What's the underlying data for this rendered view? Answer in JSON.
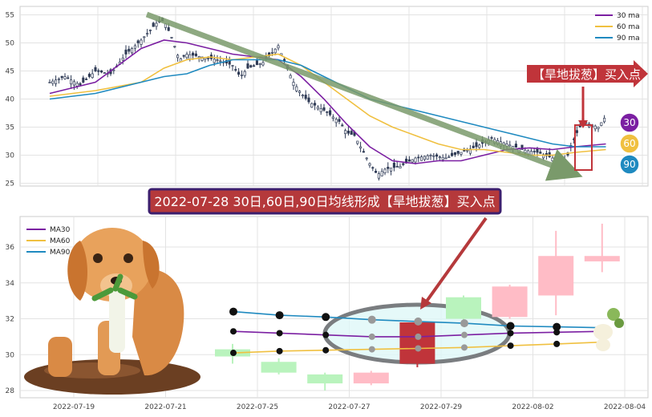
{
  "chart_data": [
    {
      "type": "line",
      "subtype": "candlestick-with-moving-averages",
      "ylim": [
        24.5,
        56.5
      ],
      "yticks": [
        25,
        30,
        35,
        40,
        45,
        50,
        55
      ],
      "grid": true,
      "legend_position": "top-right",
      "series": [
        {
          "name": "30 ma",
          "color": "#7b1fa2"
        },
        {
          "name": "60 ma",
          "color": "#f0c040"
        },
        {
          "name": "90 ma",
          "color": "#1f8ac0"
        }
      ],
      "close_path": [
        [
          0,
          43
        ],
        [
          10,
          44
        ],
        [
          20,
          42.5
        ],
        [
          30,
          45
        ],
        [
          40,
          44.5
        ],
        [
          50,
          48
        ],
        [
          60,
          50.5
        ],
        [
          65,
          52
        ],
        [
          70,
          53.5
        ],
        [
          75,
          54
        ],
        [
          80,
          51
        ],
        [
          85,
          47
        ],
        [
          90,
          48
        ],
        [
          100,
          47.5
        ],
        [
          110,
          47
        ],
        [
          120,
          46
        ],
        [
          125,
          44
        ],
        [
          130,
          45.5
        ],
        [
          140,
          46.5
        ],
        [
          145,
          48
        ],
        [
          150,
          49.5
        ],
        [
          155,
          46
        ],
        [
          160,
          43
        ],
        [
          165,
          41
        ],
        [
          170,
          39.5
        ],
        [
          180,
          38
        ],
        [
          190,
          36
        ],
        [
          195,
          34
        ],
        [
          200,
          33.5
        ],
        [
          205,
          31
        ],
        [
          210,
          28.5
        ],
        [
          215,
          26.5
        ],
        [
          220,
          27.5
        ],
        [
          230,
          28
        ],
        [
          240,
          29.5
        ],
        [
          250,
          30
        ],
        [
          260,
          29.5
        ],
        [
          270,
          30.5
        ],
        [
          280,
          31.5
        ],
        [
          290,
          33
        ],
        [
          300,
          32
        ],
        [
          310,
          31
        ],
        [
          320,
          30.5
        ],
        [
          330,
          29.5
        ],
        [
          336,
          28.5
        ],
        [
          340,
          30
        ],
        [
          345,
          33.5
        ],
        [
          350,
          36
        ],
        [
          360,
          35
        ],
        [
          365,
          37
        ]
      ],
      "ma30": [
        [
          0,
          41
        ],
        [
          15,
          42
        ],
        [
          30,
          43
        ],
        [
          45,
          46
        ],
        [
          60,
          49
        ],
        [
          75,
          50.5
        ],
        [
          90,
          50
        ],
        [
          105,
          49
        ],
        [
          120,
          48
        ],
        [
          135,
          47.5
        ],
        [
          150,
          47
        ],
        [
          165,
          44
        ],
        [
          180,
          40
        ],
        [
          195,
          35.5
        ],
        [
          210,
          31.5
        ],
        [
          225,
          29
        ],
        [
          240,
          28.5
        ],
        [
          255,
          29
        ],
        [
          270,
          29
        ],
        [
          285,
          30
        ],
        [
          300,
          31
        ],
        [
          315,
          31.3
        ],
        [
          330,
          31
        ],
        [
          345,
          31.5
        ],
        [
          365,
          32
        ]
      ],
      "ma60": [
        [
          0,
          40.5
        ],
        [
          30,
          41.5
        ],
        [
          60,
          43
        ],
        [
          75,
          45.5
        ],
        [
          90,
          47
        ],
        [
          105,
          47.5
        ],
        [
          120,
          47
        ],
        [
          135,
          47.5
        ],
        [
          150,
          48
        ],
        [
          165,
          46
        ],
        [
          180,
          43
        ],
        [
          195,
          40
        ],
        [
          210,
          37
        ],
        [
          225,
          35
        ],
        [
          240,
          33.5
        ],
        [
          255,
          32
        ],
        [
          270,
          31
        ],
        [
          285,
          31
        ],
        [
          300,
          30.5
        ],
        [
          315,
          30
        ],
        [
          330,
          30
        ],
        [
          345,
          30.5
        ],
        [
          365,
          31
        ]
      ],
      "ma90": [
        [
          0,
          40
        ],
        [
          30,
          41
        ],
        [
          60,
          43
        ],
        [
          75,
          44
        ],
        [
          90,
          44.5
        ],
        [
          105,
          46
        ],
        [
          120,
          47
        ],
        [
          135,
          47
        ],
        [
          150,
          47
        ],
        [
          165,
          46
        ],
        [
          180,
          44
        ],
        [
          195,
          42
        ],
        [
          210,
          40
        ],
        [
          225,
          39
        ],
        [
          240,
          38
        ],
        [
          255,
          37
        ],
        [
          270,
          36
        ],
        [
          285,
          35
        ],
        [
          300,
          34
        ],
        [
          315,
          33
        ],
        [
          330,
          32
        ],
        [
          345,
          31.5
        ],
        [
          365,
          31.5
        ]
      ],
      "trend_arrow_label": "",
      "signal_label": "【旱地拔葱】买入点",
      "badges": [
        "30",
        "60",
        "90"
      ]
    },
    {
      "type": "line",
      "subtype": "candlestick-zoom",
      "ylim": [
        27.6,
        37.7
      ],
      "yticks": [
        28,
        30,
        32,
        34,
        36
      ],
      "xticks": [
        "2022-07-19",
        "2022-07-21",
        "2022-07-25",
        "2022-07-27",
        "2022-07-29",
        "2022-08-02",
        "2022-08-04"
      ],
      "grid": true,
      "legend_position": "top-left",
      "series": [
        {
          "name": "MA30",
          "color": "#7b1fa2",
          "values": [
            31.3,
            31.2,
            31.1,
            31.0,
            31.0,
            31.1,
            31.2,
            31.25,
            31.3
          ]
        },
        {
          "name": "MA60",
          "color": "#f0c040",
          "values": [
            30.1,
            30.2,
            30.25,
            30.3,
            30.35,
            30.4,
            30.5,
            30.6,
            30.7
          ]
        },
        {
          "name": "MA90",
          "color": "#1f8ac0",
          "values": [
            32.4,
            32.2,
            32.1,
            31.95,
            31.85,
            31.75,
            31.6,
            31.55,
            31.5
          ]
        }
      ],
      "candles": [
        {
          "o": 29.9,
          "c": 30.3,
          "h": 30.6,
          "l": 29.5,
          "color": "#b9f3bd"
        },
        {
          "o": 29.6,
          "c": 29.0,
          "h": 29.8,
          "l": 28.9,
          "color": "#b9f3bd"
        },
        {
          "o": 28.9,
          "c": 28.4,
          "h": 29.0,
          "l": 28.0,
          "color": "#b9f3bd"
        },
        {
          "o": 28.4,
          "c": 29.0,
          "h": 29.1,
          "l": 28.3,
          "color": "#ffbcc6"
        },
        {
          "o": 29.5,
          "c": 31.8,
          "h": 31.9,
          "l": 29.3,
          "color": "#c0343a"
        },
        {
          "o": 33.2,
          "c": 32.0,
          "h": 33.3,
          "l": 31.8,
          "color": "#b9f3bd"
        },
        {
          "o": 32.1,
          "c": 33.8,
          "h": 33.9,
          "l": 32.0,
          "color": "#ffbcc6"
        },
        {
          "o": 33.3,
          "c": 35.5,
          "h": 36.9,
          "l": 32.2,
          "color": "#ffbcc6"
        },
        {
          "o": 35.2,
          "c": 35.5,
          "h": 37.3,
          "l": 34.6,
          "color": "#ffbcc6"
        }
      ],
      "signal_index": 4,
      "banner": "2022-07-28 30日,60日,90日均线形成【旱地拔葱】买入点"
    }
  ]
}
